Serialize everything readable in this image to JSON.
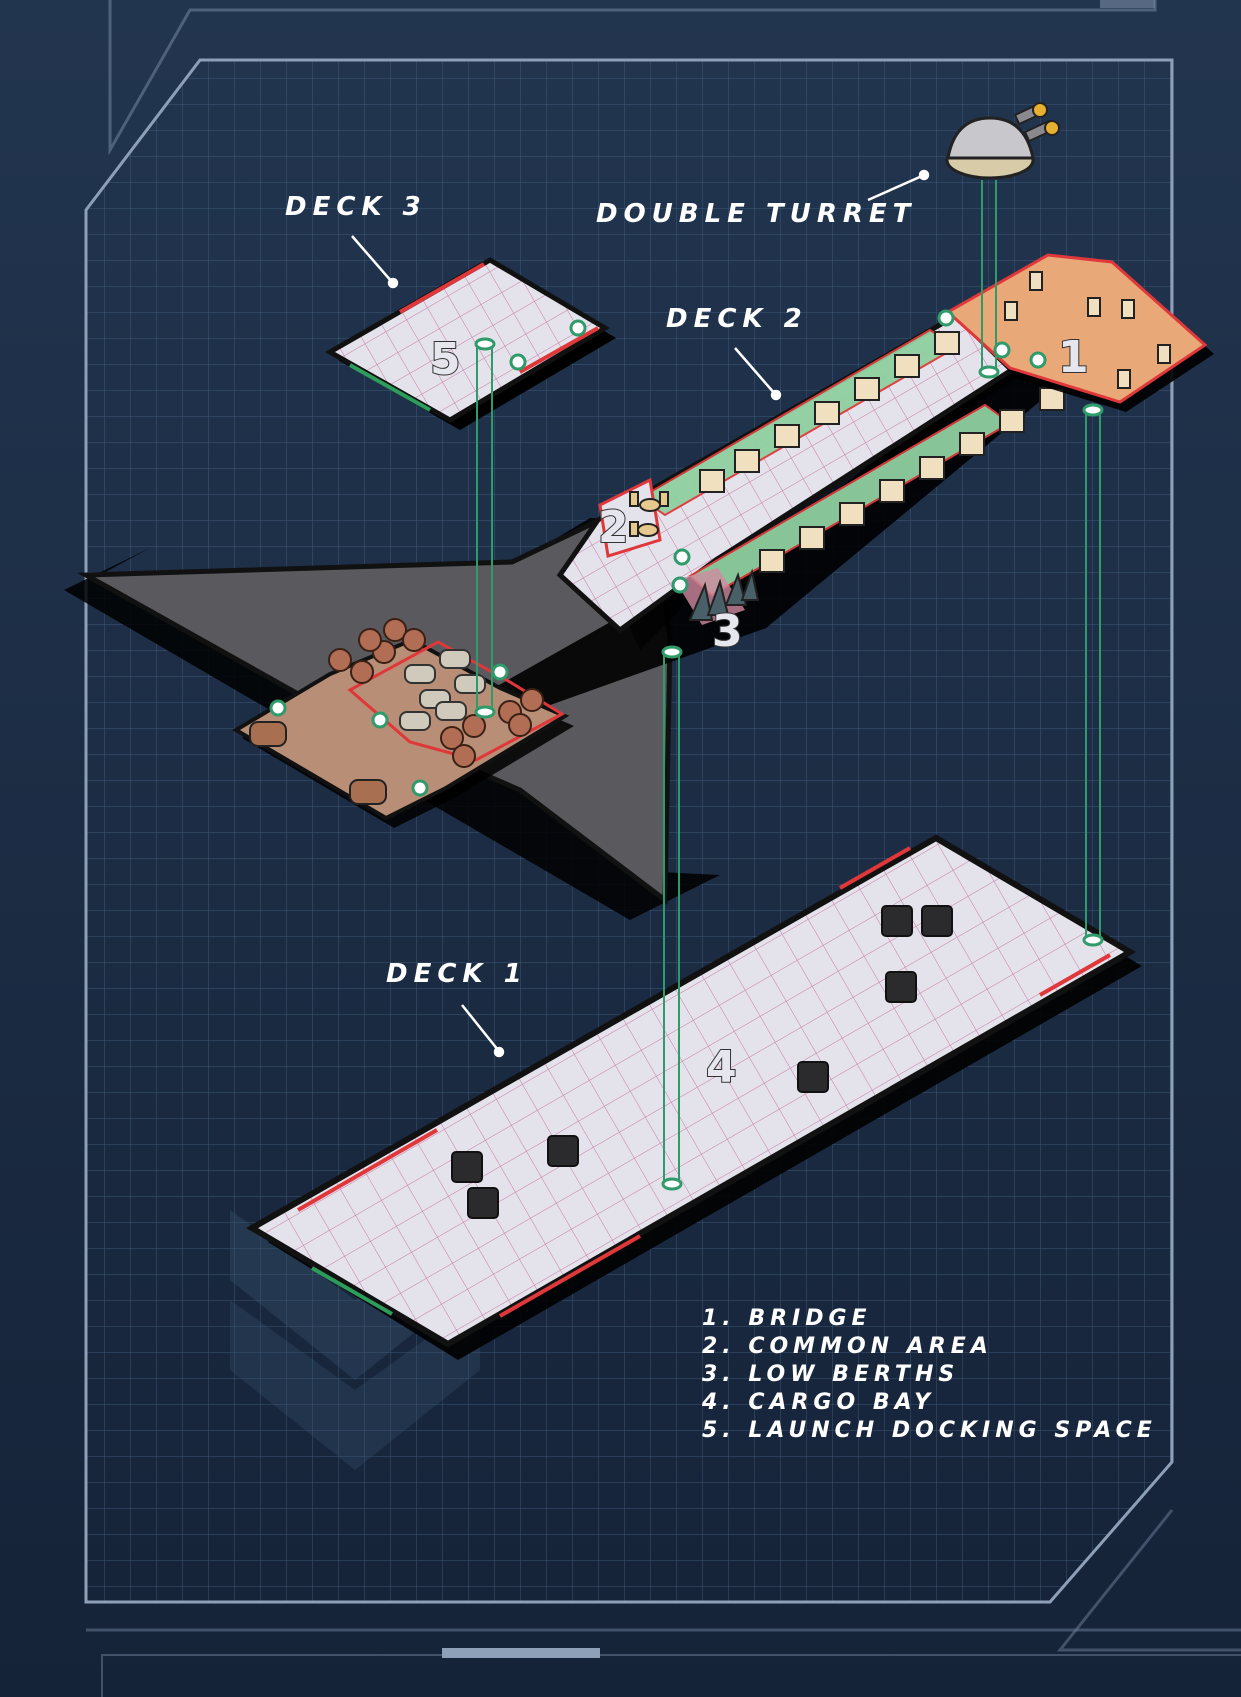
{
  "labels": {
    "deck3": "DECK 3",
    "deck2": "DECK 2",
    "deck1": "DECK 1",
    "turret": "DOUBLE TURRET"
  },
  "rooms": {
    "r1": "1",
    "r2": "2",
    "r3": "3",
    "r4": "4",
    "r5": "5"
  },
  "legend": [
    "1. BRIDGE",
    "2. COMMON AREA",
    "3. LOW BERTHS",
    "4. CARGO BAY",
    "5. LAUNCH DOCKING SPACE"
  ],
  "colors": {
    "background": "#1b2c44",
    "grid": "#4a6a8c",
    "floor": "#e4e2ea",
    "floor_grid": "#c77aa8",
    "wall_red": "#e0383a",
    "wall_green": "#2e9c5a",
    "bridge_floor": "#e8a878",
    "berth_floor": "#8fd0a0",
    "cargo_floor": "#b98e76",
    "hull_gray": "#5a5a5e",
    "elevator": "#2f9a6a"
  }
}
